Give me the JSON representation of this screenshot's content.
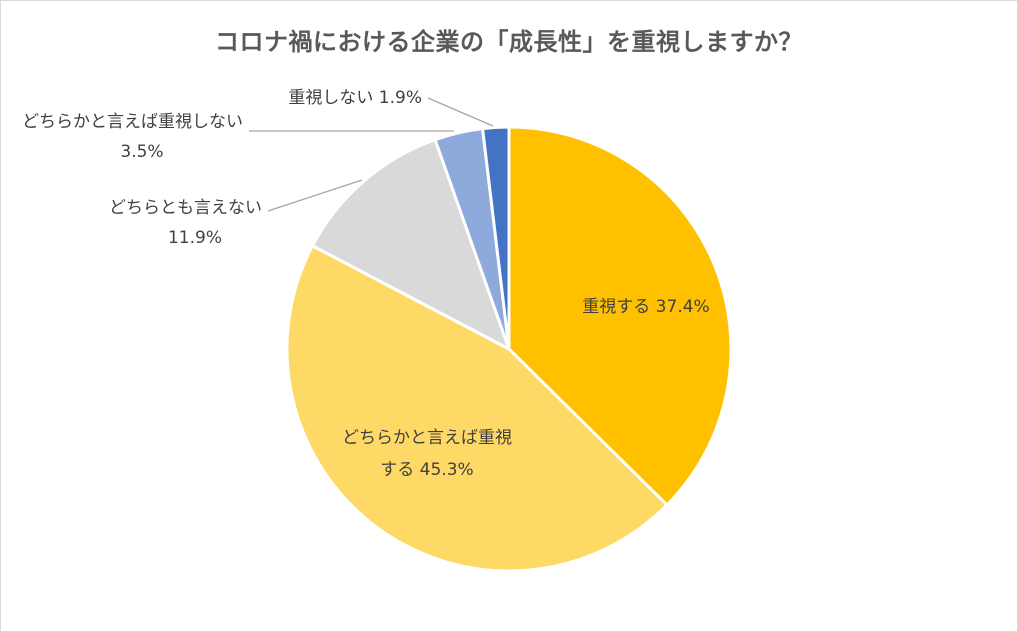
{
  "chart_data": {
    "type": "pie",
    "title": "コロナ禍における企業の「成長性」を重視しますか？",
    "start_angle_deg": 0,
    "direction": "clockwise",
    "slices": [
      {
        "label_lines": [
          "重視する 37.4%"
        ],
        "value": 37.4,
        "color": "#FFC000"
      },
      {
        "label_lines": [
          "どちらかと言えば重視",
          "する 45.3%"
        ],
        "value": 45.3,
        "color": "#FFD966"
      },
      {
        "label_lines": [
          "どちらとも言えない",
          "11.9%"
        ],
        "value": 11.9,
        "color": "#D9D9D9"
      },
      {
        "label_lines": [
          "どちらかと言えば重視しない",
          "3.5%"
        ],
        "value": 3.5,
        "color": "#8EA9DB"
      },
      {
        "label_lines": [
          "重視しない 1.9%"
        ],
        "value": 1.9,
        "color": "#4472C4"
      }
    ],
    "legend": "none",
    "slice_border_color": "#FFFFFF",
    "leader_line_color": "#A6A6A6"
  }
}
